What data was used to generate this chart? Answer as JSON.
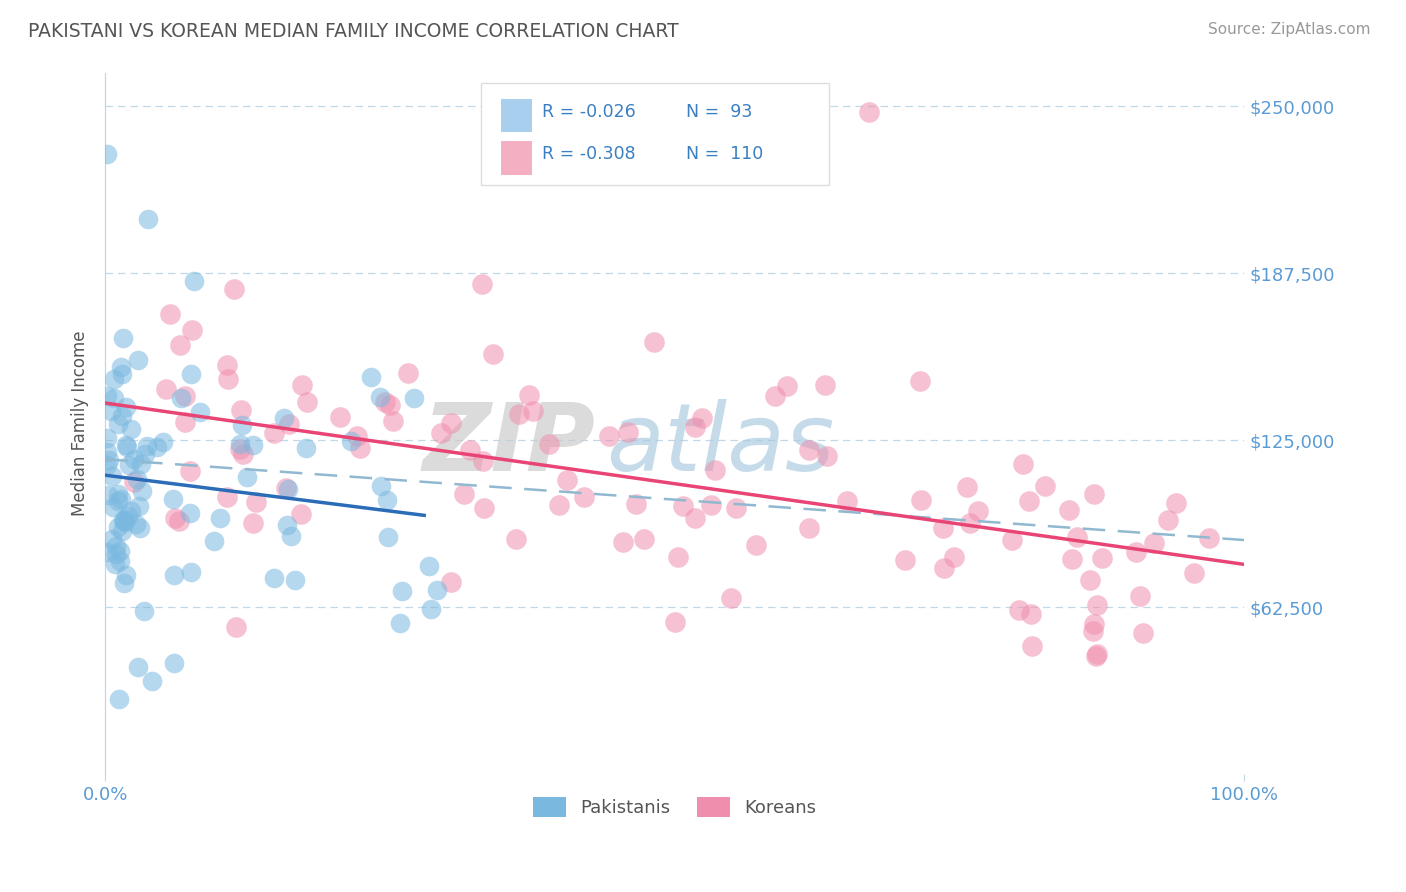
{
  "title": "PAKISTANI VS KOREAN MEDIAN FAMILY INCOME CORRELATION CHART",
  "source_text": "Source: ZipAtlas.com",
  "ylabel": "Median Family Income",
  "xlim": [
    0,
    1
  ],
  "ylim": [
    0,
    262500
  ],
  "yticks": [
    62500,
    125000,
    187500,
    250000
  ],
  "ytick_labels": [
    "$62,500",
    "$125,000",
    "$187,500",
    "$250,000"
  ],
  "xtick_labels": [
    "0.0%",
    "100.0%"
  ],
  "legend_entries": [
    {
      "label": "Pakistanis",
      "R": "-0.026",
      "N": "93",
      "color": "#a8d0ee"
    },
    {
      "label": "Koreans",
      "R": "-0.308",
      "N": "110",
      "color": "#f5afc3"
    }
  ],
  "pakistani_scatter_color": "#7ab8e0",
  "korean_scatter_color": "#f08fad",
  "pakistani_line_color": "#2b6cb8",
  "korean_line_color": "#e84575",
  "trend_line_color": "#90b8d0",
  "watermark_zip_color": "#d8e8f0",
  "watermark_atlas_color": "#b8cfe0",
  "background_color": "#ffffff",
  "grid_color": "#c0d8e8",
  "title_color": "#555555",
  "axis_label_color": "#555555",
  "tick_label_color": "#5b9bd5",
  "stat_value_color": "#3a7fc1",
  "source_color": "#999999"
}
